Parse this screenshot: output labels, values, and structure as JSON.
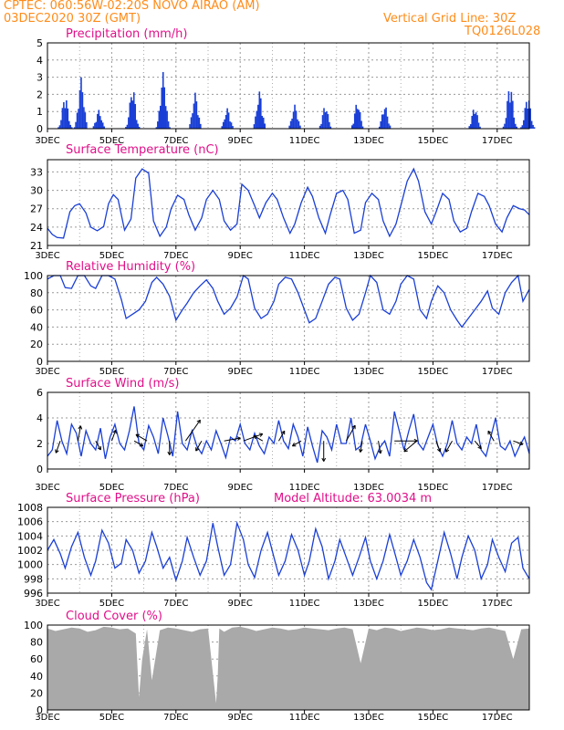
{
  "header": {
    "line1_left": "CPTEC:   060:56W-02:20S   NOVO AIRAO (AM)",
    "line2_left": "03DEC2020 30Z (GMT)",
    "line2_right": "Vertical Grid Line: 30Z",
    "line3_right": "TQ0126L028"
  },
  "colors": {
    "header": "#ff8c1a",
    "title": "#e0108a",
    "series": "#1a3fd6",
    "cloud": "#a9a9a9",
    "grid": "#9a9a9a"
  },
  "chart_data": [
    {
      "type": "bar",
      "title": "Precipitation (mm/h)",
      "ylim": [
        0,
        5
      ],
      "yticks": [
        0,
        1,
        2,
        3,
        4,
        5
      ],
      "x_tick_labels": [
        "3DEC",
        "5DEC",
        "7DEC",
        "9DEC",
        "11DEC",
        "13DEC",
        "15DEC",
        "17DEC"
      ],
      "x_days": [
        0,
        2,
        4,
        6,
        8,
        10,
        12,
        14
      ],
      "x_range_days": [
        0,
        15
      ],
      "grid": true,
      "bursts": [
        {
          "center": 0.55,
          "peak": 2.0
        },
        {
          "center": 1.05,
          "peak": 3.0
        },
        {
          "center": 1.6,
          "peak": 1.1
        },
        {
          "center": 2.65,
          "peak": 2.5
        },
        {
          "center": 3.6,
          "peak": 3.3
        },
        {
          "center": 4.6,
          "peak": 2.1
        },
        {
          "center": 5.6,
          "peak": 1.2
        },
        {
          "center": 6.6,
          "peak": 2.2
        },
        {
          "center": 7.7,
          "peak": 1.4
        },
        {
          "center": 8.65,
          "peak": 1.4
        },
        {
          "center": 9.65,
          "peak": 1.6
        },
        {
          "center": 10.5,
          "peak": 1.4
        },
        {
          "center": 13.3,
          "peak": 1.3
        },
        {
          "center": 14.4,
          "peak": 2.7
        },
        {
          "center": 14.95,
          "peak": 2.0
        }
      ]
    },
    {
      "type": "line",
      "title": "Surface Temperature (nC)",
      "ylim": [
        21,
        35
      ],
      "yticks": [
        21,
        24,
        27,
        30,
        33
      ],
      "x_tick_labels": [
        "3DEC",
        "5DEC",
        "7DEC",
        "9DEC",
        "11DEC",
        "13DEC",
        "15DEC",
        "17DEC"
      ],
      "x_days": [
        0,
        2,
        4,
        6,
        8,
        10,
        12,
        14
      ],
      "grid": true,
      "x": [
        0,
        0.15,
        0.3,
        0.5,
        0.7,
        0.85,
        1.0,
        1.2,
        1.35,
        1.55,
        1.75,
        1.9,
        2.05,
        2.2,
        2.4,
        2.6,
        2.75,
        2.95,
        3.15,
        3.3,
        3.5,
        3.7,
        3.85,
        4.05,
        4.25,
        4.4,
        4.6,
        4.8,
        4.95,
        5.15,
        5.35,
        5.5,
        5.7,
        5.9,
        6.05,
        6.25,
        6.45,
        6.6,
        6.8,
        7.0,
        7.15,
        7.35,
        7.55,
        7.7,
        7.9,
        8.1,
        8.25,
        8.45,
        8.65,
        8.8,
        9.0,
        9.2,
        9.35,
        9.55,
        9.75,
        9.9,
        10.1,
        10.3,
        10.45,
        10.65,
        10.85,
        11.0,
        11.2,
        11.4,
        11.55,
        11.75,
        11.95,
        12.1,
        12.3,
        12.5,
        12.65,
        12.85,
        13.05,
        13.2,
        13.4,
        13.6,
        13.75,
        13.95,
        14.15,
        14.3,
        14.5,
        14.7,
        14.85,
        15.0
      ],
      "y": [
        23.8,
        22.8,
        22.3,
        22.2,
        26.5,
        27.5,
        27.8,
        26.3,
        24.0,
        23.4,
        24.1,
        27.8,
        29.3,
        28.5,
        23.5,
        25.3,
        32.0,
        33.5,
        32.8,
        25.0,
        22.5,
        24.0,
        27.0,
        29.2,
        28.5,
        26.0,
        23.5,
        25.5,
        28.5,
        30.0,
        28.5,
        25.0,
        23.5,
        24.5,
        31.0,
        30.0,
        27.5,
        25.5,
        28.0,
        29.5,
        28.5,
        25.5,
        23.0,
        24.5,
        28.0,
        30.5,
        29.0,
        25.5,
        23.0,
        26.0,
        29.5,
        30.0,
        28.5,
        23.0,
        23.5,
        28.0,
        29.5,
        28.5,
        25.0,
        22.5,
        24.5,
        27.5,
        31.5,
        33.5,
        31.5,
        26.5,
        24.5,
        26.5,
        29.5,
        28.5,
        25.0,
        23.2,
        23.8,
        26.5,
        29.5,
        29.0,
        27.5,
        24.5,
        23.2,
        25.5,
        27.5,
        27.0,
        26.8,
        26.0
      ]
    },
    {
      "type": "line",
      "title": "Relative Humidity (%)",
      "ylim": [
        0,
        100
      ],
      "yticks": [
        0,
        20,
        40,
        60,
        80,
        100
      ],
      "x_tick_labels": [
        "3DEC",
        "5DEC",
        "7DEC",
        "9DEC",
        "11DEC",
        "13DEC",
        "15DEC",
        "17DEC"
      ],
      "x_days": [
        0,
        2,
        4,
        6,
        8,
        10,
        12,
        14
      ],
      "grid": true,
      "x": [
        0,
        0.2,
        0.4,
        0.55,
        0.75,
        0.95,
        1.15,
        1.35,
        1.5,
        1.7,
        1.9,
        2.1,
        2.3,
        2.45,
        2.65,
        2.85,
        3.05,
        3.25,
        3.4,
        3.6,
        3.8,
        4.0,
        4.2,
        4.35,
        4.55,
        4.75,
        4.95,
        5.15,
        5.3,
        5.5,
        5.7,
        5.9,
        6.1,
        6.25,
        6.45,
        6.65,
        6.85,
        7.05,
        7.2,
        7.4,
        7.6,
        7.8,
        8.0,
        8.15,
        8.35,
        8.55,
        8.75,
        8.95,
        9.1,
        9.3,
        9.5,
        9.7,
        9.9,
        10.05,
        10.25,
        10.45,
        10.65,
        10.85,
        11.0,
        11.2,
        11.4,
        11.6,
        11.8,
        11.95,
        12.15,
        12.35,
        12.55,
        12.75,
        12.9,
        13.1,
        13.3,
        13.5,
        13.7,
        13.85,
        14.05,
        14.25,
        14.45,
        14.65,
        14.8,
        15.0
      ],
      "y": [
        96,
        100,
        100,
        86,
        85,
        100,
        100,
        88,
        85,
        100,
        100,
        96,
        72,
        50,
        55,
        60,
        70,
        92,
        98,
        90,
        76,
        48,
        60,
        68,
        80,
        88,
        95,
        85,
        70,
        55,
        62,
        75,
        100,
        96,
        62,
        50,
        55,
        70,
        90,
        98,
        96,
        80,
        60,
        45,
        50,
        70,
        90,
        98,
        96,
        62,
        48,
        55,
        80,
        100,
        92,
        60,
        55,
        70,
        90,
        100,
        96,
        60,
        50,
        70,
        88,
        80,
        60,
        48,
        40,
        50,
        60,
        70,
        82,
        62,
        55,
        80,
        92,
        100,
        70,
        84
      ]
    },
    {
      "type": "line",
      "title": "Surface Wind (m/s)",
      "ylim": [
        0,
        6
      ],
      "yticks": [
        0,
        2,
        4,
        6
      ],
      "x_tick_labels": [
        "3DEC",
        "5DEC",
        "7DEC",
        "9DEC",
        "11DEC",
        "13DEC",
        "15DEC",
        "17DEC"
      ],
      "x_days": [
        0,
        2,
        4,
        6,
        8,
        10,
        12,
        14
      ],
      "grid": true,
      "x": [
        0,
        0.15,
        0.3,
        0.45,
        0.6,
        0.75,
        0.9,
        1.05,
        1.2,
        1.35,
        1.5,
        1.65,
        1.8,
        1.95,
        2.1,
        2.25,
        2.4,
        2.55,
        2.7,
        2.85,
        3.0,
        3.15,
        3.3,
        3.45,
        3.6,
        3.75,
        3.9,
        4.05,
        4.2,
        4.35,
        4.5,
        4.65,
        4.8,
        4.95,
        5.1,
        5.25,
        5.4,
        5.55,
        5.7,
        5.85,
        6.0,
        6.15,
        6.3,
        6.45,
        6.6,
        6.75,
        6.9,
        7.05,
        7.2,
        7.35,
        7.5,
        7.65,
        7.8,
        7.95,
        8.1,
        8.25,
        8.4,
        8.55,
        8.7,
        8.85,
        9.0,
        9.15,
        9.3,
        9.45,
        9.6,
        9.75,
        9.9,
        10.05,
        10.2,
        10.35,
        10.5,
        10.65,
        10.8,
        10.95,
        11.1,
        11.25,
        11.4,
        11.55,
        11.7,
        11.85,
        12.0,
        12.15,
        12.3,
        12.45,
        12.6,
        12.75,
        12.9,
        13.05,
        13.2,
        13.35,
        13.5,
        13.65,
        13.8,
        13.95,
        14.1,
        14.25,
        14.4,
        14.55,
        14.7,
        14.85,
        15.0
      ],
      "y": [
        1.0,
        1.5,
        3.8,
        2.2,
        1.2,
        3.5,
        2.8,
        1.0,
        3.0,
        2.0,
        1.5,
        3.2,
        0.8,
        2.5,
        3.5,
        2.0,
        1.5,
        3.0,
        4.9,
        2.0,
        1.5,
        3.4,
        2.5,
        1.2,
        4.0,
        2.6,
        1.0,
        4.5,
        2.0,
        1.5,
        3.0,
        1.8,
        1.2,
        2.2,
        1.5,
        3.0,
        2.0,
        0.9,
        2.5,
        2.2,
        3.5,
        2.0,
        1.5,
        2.8,
        1.8,
        1.2,
        2.5,
        2.0,
        3.8,
        2.2,
        1.6,
        3.5,
        2.5,
        1.0,
        3.3,
        1.8,
        0.5,
        3.0,
        2.5,
        1.5,
        3.5,
        2.0,
        2.0,
        4.0,
        1.5,
        1.8,
        3.5,
        2.2,
        0.8,
        1.7,
        2.2,
        1.0,
        4.5,
        3.0,
        1.5,
        3.0,
        4.3,
        2.0,
        1.5,
        2.5,
        3.5,
        1.8,
        1.0,
        2.0,
        3.8,
        2.0,
        1.5,
        2.5,
        2.0,
        3.5,
        1.5,
        1.0,
        2.5,
        4.0,
        1.8,
        1.5,
        2.2,
        1.0,
        1.8,
        2.5,
        1.2
      ],
      "arrows": [
        {
          "x": 0.4,
          "dir": 200,
          "len": 1.0
        },
        {
          "x": 0.95,
          "dir": 10,
          "len": 1.2
        },
        {
          "x": 1.5,
          "dir": 150,
          "len": 0.8
        },
        {
          "x": 2.0,
          "dir": 20,
          "len": 0.9
        },
        {
          "x": 2.7,
          "dir": 120,
          "len": 0.8
        },
        {
          "x": 3.1,
          "dir": 300,
          "len": 1.0
        },
        {
          "x": 3.8,
          "dir": 180,
          "len": 1.1
        },
        {
          "x": 4.3,
          "dir": 35,
          "len": 2.0
        },
        {
          "x": 4.8,
          "dir": 210,
          "len": 0.9
        },
        {
          "x": 5.5,
          "dir": 80,
          "len": 1.3
        },
        {
          "x": 6.1,
          "dir": 70,
          "len": 1.6
        },
        {
          "x": 6.7,
          "dir": 300,
          "len": 0.8
        },
        {
          "x": 7.2,
          "dir": 30,
          "len": 0.9
        },
        {
          "x": 7.9,
          "dir": 240,
          "len": 0.8
        },
        {
          "x": 8.6,
          "dir": 180,
          "len": 1.6
        },
        {
          "x": 9.3,
          "dir": 30,
          "len": 1.4
        },
        {
          "x": 9.8,
          "dir": 190,
          "len": 0.9
        },
        {
          "x": 10.3,
          "dir": 170,
          "len": 1.0
        },
        {
          "x": 10.8,
          "dir": 90,
          "len": 1.8
        },
        {
          "x": 11.5,
          "dir": 230,
          "len": 1.3
        },
        {
          "x": 12.1,
          "dir": 160,
          "len": 0.9
        },
        {
          "x": 12.6,
          "dir": 210,
          "len": 1.0
        },
        {
          "x": 13.3,
          "dir": 140,
          "len": 0.8
        },
        {
          "x": 13.9,
          "dir": 330,
          "len": 0.9
        },
        {
          "x": 14.5,
          "dir": 110,
          "len": 0.8
        }
      ]
    },
    {
      "type": "line",
      "title": "Surface Pressure (hPa)",
      "annotation": "Model Altitude: 63.0034 m",
      "ylim": [
        996,
        1008
      ],
      "yticks": [
        996,
        998,
        1000,
        1002,
        1004,
        1006,
        1008
      ],
      "x_tick_labels": [
        "3DEC",
        "5DEC",
        "7DEC",
        "9DEC",
        "11DEC",
        "13DEC",
        "15DEC",
        "17DEC"
      ],
      "x_days": [
        0,
        2,
        4,
        6,
        8,
        10,
        12,
        14
      ],
      "grid": true,
      "x": [
        0,
        0.2,
        0.4,
        0.55,
        0.75,
        0.95,
        1.15,
        1.35,
        1.5,
        1.7,
        1.9,
        2.1,
        2.3,
        2.45,
        2.65,
        2.85,
        3.05,
        3.25,
        3.4,
        3.6,
        3.8,
        4.0,
        4.2,
        4.35,
        4.55,
        4.75,
        4.95,
        5.15,
        5.3,
        5.5,
        5.7,
        5.9,
        6.1,
        6.25,
        6.45,
        6.65,
        6.85,
        7.05,
        7.2,
        7.4,
        7.6,
        7.8,
        8.0,
        8.15,
        8.35,
        8.55,
        8.75,
        8.95,
        9.1,
        9.3,
        9.5,
        9.7,
        9.9,
        10.05,
        10.25,
        10.45,
        10.65,
        10.85,
        11.0,
        11.2,
        11.4,
        11.6,
        11.8,
        11.95,
        12.15,
        12.35,
        12.55,
        12.75,
        12.9,
        13.1,
        13.3,
        13.5,
        13.7,
        13.85,
        14.05,
        14.25,
        14.45,
        14.65,
        14.8,
        15.0
      ],
      "y": [
        1002.0,
        1003.5,
        1001.5,
        999.5,
        1002.5,
        1004.5,
        1001.0,
        998.5,
        1000.5,
        1004.8,
        1003.0,
        999.5,
        1000.2,
        1003.5,
        1002.0,
        998.8,
        1000.5,
        1004.5,
        1002.5,
        999.5,
        1001.0,
        997.8,
        1000.5,
        1003.8,
        1001.0,
        998.5,
        1000.5,
        1005.8,
        1002.5,
        998.5,
        1000.0,
        1005.8,
        1003.5,
        1000.0,
        998.2,
        1002.0,
        1004.5,
        1001.0,
        998.5,
        1000.5,
        1004.2,
        1002.0,
        998.5,
        1000.5,
        1005.0,
        1002.5,
        998.0,
        1000.5,
        1003.5,
        1001.0,
        998.5,
        1001.0,
        1003.8,
        1000.5,
        998.0,
        1000.5,
        1004.2,
        1001.0,
        998.5,
        1000.5,
        1003.5,
        1001.0,
        997.5,
        996.5,
        1000.5,
        1004.5,
        1001.5,
        998.0,
        1001.0,
        1004.0,
        1002.0,
        998.0,
        1000.0,
        1003.5,
        1001.0,
        999.0,
        1003.0,
        1003.8,
        999.5,
        998.0
      ]
    },
    {
      "type": "area",
      "title": "Cloud Cover (%)",
      "ylim": [
        0,
        100
      ],
      "yticks": [
        0,
        20,
        40,
        60,
        80,
        100
      ],
      "x_tick_labels": [
        "3DEC",
        "5DEC",
        "7DEC",
        "9DEC",
        "11DEC",
        "13DEC",
        "15DEC",
        "17DEC"
      ],
      "x_days": [
        0,
        2,
        4,
        6,
        8,
        10,
        12,
        14
      ],
      "grid": true,
      "x": [
        0,
        0.25,
        0.5,
        0.75,
        1.0,
        1.25,
        1.5,
        1.75,
        2.0,
        2.25,
        2.5,
        2.75,
        2.85,
        2.95,
        3.1,
        3.25,
        3.5,
        3.75,
        4.0,
        4.25,
        4.5,
        4.75,
        5.0,
        5.25,
        5.3,
        5.35,
        5.5,
        5.75,
        6.0,
        6.25,
        6.5,
        6.75,
        7.0,
        7.25,
        7.5,
        7.75,
        8.0,
        8.25,
        8.5,
        8.75,
        9.0,
        9.25,
        9.5,
        9.75,
        10.0,
        10.25,
        10.5,
        10.75,
        11.0,
        11.25,
        11.5,
        11.75,
        12.0,
        12.25,
        12.5,
        12.75,
        13.0,
        13.25,
        13.5,
        13.75,
        14.0,
        14.25,
        14.5,
        14.75,
        15.0
      ],
      "y": [
        96,
        93,
        95,
        97,
        96,
        92,
        94,
        98,
        97,
        95,
        96,
        90,
        15,
        60,
        95,
        35,
        94,
        97,
        96,
        94,
        92,
        95,
        96,
        8,
        40,
        96,
        92,
        97,
        98,
        96,
        93,
        95,
        97,
        96,
        94,
        95,
        97,
        96,
        95,
        94,
        96,
        97,
        95,
        55,
        96,
        94,
        97,
        96,
        93,
        95,
        97,
        96,
        94,
        95,
        97,
        96,
        95,
        94,
        96,
        97,
        95,
        93,
        60,
        95,
        96
      ]
    }
  ]
}
